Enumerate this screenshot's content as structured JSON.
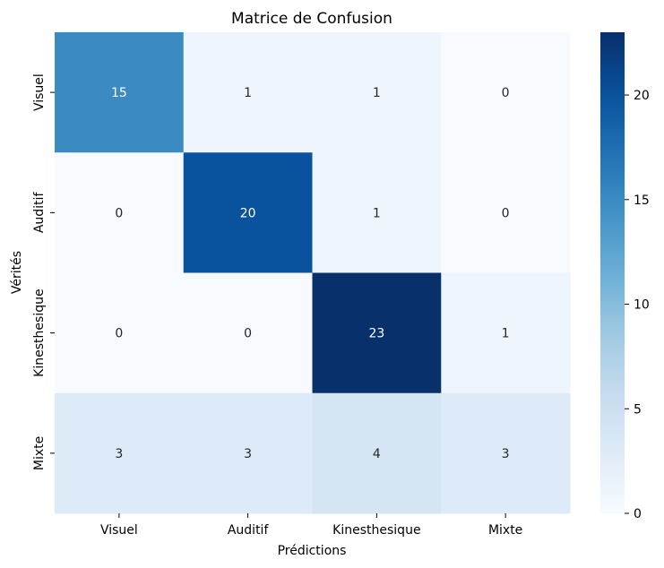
{
  "chart_data": {
    "type": "heatmap",
    "title": "Matrice de Confusion",
    "xlabel": "Prédictions",
    "ylabel": "Vérités",
    "x_categories": [
      "Visuel",
      "Auditif",
      "Kinesthesique",
      "Mixte"
    ],
    "y_categories": [
      "Visuel",
      "Auditif",
      "Kinesthesique",
      "Mixte"
    ],
    "values": [
      [
        15,
        1,
        1,
        0
      ],
      [
        0,
        20,
        1,
        0
      ],
      [
        0,
        0,
        23,
        1
      ],
      [
        3,
        3,
        4,
        3
      ]
    ],
    "colormap": "Blues",
    "color_range": [
      0,
      23
    ],
    "colorbar_ticks": [
      "0",
      "5",
      "10",
      "15",
      "20"
    ],
    "colorbar_tick_values": [
      0,
      5,
      10,
      15,
      20
    ],
    "annotations": true
  }
}
